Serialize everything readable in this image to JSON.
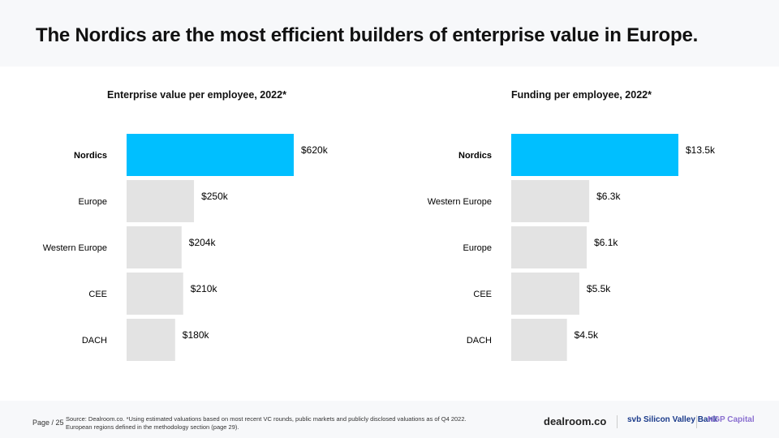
{
  "title": "The Nordics are the most efficient builders of enterprise value in Europe.",
  "chart_data": [
    {
      "type": "bar",
      "orientation": "horizontal",
      "title": "Enterprise value per employee, 2022*",
      "categories": [
        "Nordics",
        "Europe",
        "Western Europe",
        "CEE",
        "DACH"
      ],
      "values": [
        620,
        250,
        204,
        210,
        180
      ],
      "labels": [
        "$620k",
        "$250k",
        "$204k",
        "$210k",
        "$180k"
      ],
      "unit": "k USD",
      "highlight": "Nordics"
    },
    {
      "type": "bar",
      "orientation": "horizontal",
      "title": "Funding per employee, 2022*",
      "categories": [
        "Nordics",
        "Western Europe",
        "Europe",
        "CEE",
        "DACH"
      ],
      "values": [
        13.5,
        6.3,
        6.1,
        5.5,
        4.5
      ],
      "labels": [
        "$13.5k",
        "$6.3k",
        "$6.1k",
        "$5.5k",
        "$4.5k"
      ],
      "unit": "k USD",
      "highlight": "Nordics"
    }
  ],
  "colors": {
    "highlight": "#00bfff",
    "bar": "#e3e3e3"
  },
  "footer": {
    "page": "Page / 25",
    "source_line1": "Source: Dealroom.co. *Using estimated valuations based on most recent VC rounds, public markets and publicly disclosed valuations as of Q4 2022.",
    "source_line2": "European regions defined in the methodology section (page 29).",
    "logos": [
      "dealroom.co",
      "svb Silicon Valley Bank",
      "NGP Capital"
    ]
  }
}
